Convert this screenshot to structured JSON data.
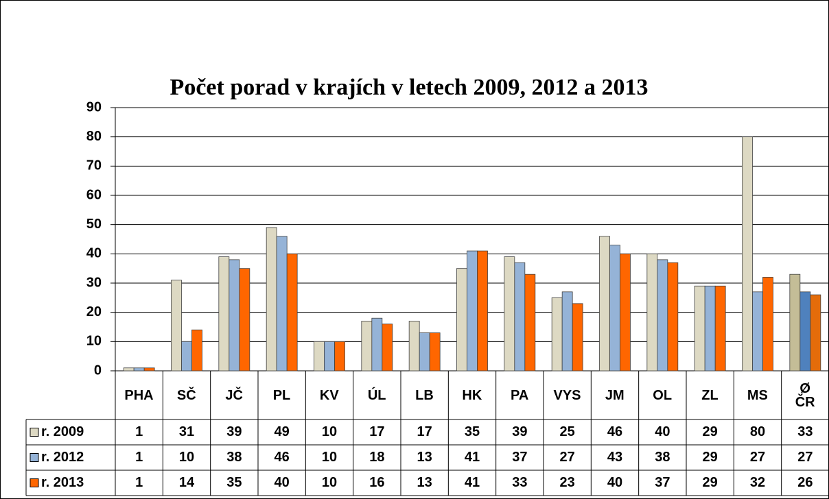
{
  "chart_data": {
    "type": "bar",
    "title": "Počet porad v krajích v letech 2009, 2012 a 2013",
    "categories": [
      "PHA",
      "SČ",
      "JČ",
      "PL",
      "KV",
      "ÚL",
      "LB",
      "HK",
      "PA",
      "VYS",
      "JM",
      "OL",
      "ZL",
      "MS",
      "Ø\nČR"
    ],
    "series": [
      {
        "name": "r. 2009",
        "color": "#ddd9c3",
        "colors": [
          "#ddd9c3",
          "#ddd9c3",
          "#ddd9c3",
          "#ddd9c3",
          "#ddd9c3",
          "#ddd9c3",
          "#ddd9c3",
          "#ddd9c3",
          "#ddd9c3",
          "#ddd9c3",
          "#ddd9c3",
          "#ddd9c3",
          "#ddd9c3",
          "#ddd9c3",
          "#c4bd97"
        ],
        "values": [
          1,
          31,
          39,
          49,
          10,
          17,
          17,
          35,
          39,
          25,
          46,
          40,
          29,
          80,
          33
        ]
      },
      {
        "name": "r. 2012",
        "color": "#95b3d7",
        "colors": [
          "#95b3d7",
          "#95b3d7",
          "#95b3d7",
          "#95b3d7",
          "#95b3d7",
          "#95b3d7",
          "#95b3d7",
          "#95b3d7",
          "#95b3d7",
          "#95b3d7",
          "#95b3d7",
          "#95b3d7",
          "#95b3d7",
          "#95b3d7",
          "#4f81bd"
        ],
        "values": [
          1,
          10,
          38,
          46,
          10,
          18,
          13,
          41,
          37,
          27,
          43,
          38,
          29,
          27,
          27
        ]
      },
      {
        "name": "r. 2013",
        "color": "#ff6600",
        "colors": [
          "#ff6600",
          "#ff6600",
          "#ff6600",
          "#ff6600",
          "#ff6600",
          "#ff6600",
          "#ff6600",
          "#ff6600",
          "#ff6600",
          "#ff6600",
          "#ff6600",
          "#ff6600",
          "#ff6600",
          "#ff6600",
          "#e46c0a"
        ],
        "values": [
          1,
          14,
          35,
          40,
          10,
          16,
          13,
          41,
          33,
          23,
          40,
          37,
          29,
          32,
          26
        ]
      }
    ],
    "ylim": [
      0,
      90
    ],
    "yticks": [
      0,
      10,
      20,
      30,
      40,
      50,
      60,
      70,
      80,
      90
    ],
    "grid": true,
    "data_table": true
  }
}
